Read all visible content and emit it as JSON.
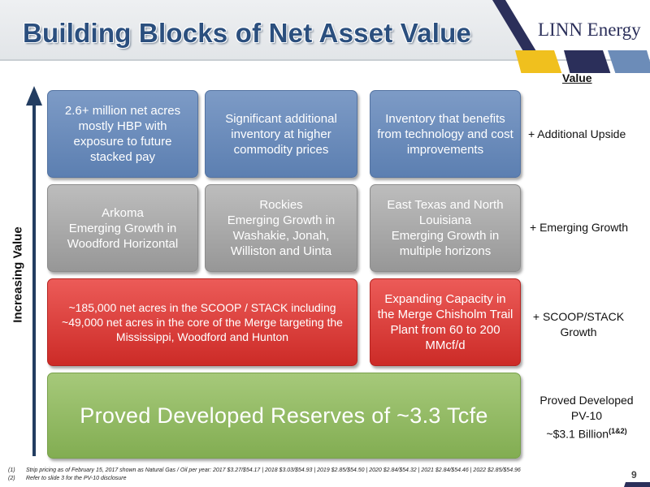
{
  "title": "Building Blocks of Net Asset Value",
  "logo_text": "LINN Energy",
  "value_heading": "Value",
  "axis_label": "Increasing Value",
  "blocks": {
    "row1": [
      "2.6+ million net acres mostly HBP with exposure to future stacked pay",
      "Significant additional inventory at higher commodity prices",
      "Inventory that benefits from technology and cost improvements"
    ],
    "row2": [
      {
        "lines": [
          "Arkoma",
          "Emerging Growth in Woodford Horizontal"
        ]
      },
      {
        "lines": [
          "Rockies",
          "Emerging Growth in Washakie, Jonah, Williston and Uinta"
        ]
      },
      {
        "lines": [
          "East Texas and North Louisiana",
          "Emerging Growth in multiple horizons"
        ]
      }
    ],
    "row3": {
      "wide": "~185,000 net acres in the SCOOP / STACK including ~49,000 net acres in the core of the Merge targeting the Mississippi, Woodford and Hunton",
      "narrow": "Expanding Capacity in the Merge Chisholm Trail Plant from 60 to 200 MMcf/d"
    },
    "row4": "Proved Developed Reserves of ~3.3 Tcfe"
  },
  "value_labels": {
    "row1": "+ Additional Upside",
    "row2": "+ Emerging Growth",
    "row3": [
      "+ SCOOP/STACK",
      "Growth"
    ],
    "row4": [
      "Proved Developed",
      "PV-10",
      "~$3.1 Billion",
      "(1&2)"
    ]
  },
  "footnotes": [
    {
      "num": "(1)",
      "text": "Strip pricing as of February 15, 2017 shown as Natural Gas / Oil per year: 2017 $3.27/$54.17 | 2018 $3.03/$54.93 | 2019 $2.85/$54.50 | 2020 $2.84/$54.32 | 2021 $2.84/$54.46 | 2022 $2.85/$54.96"
    },
    {
      "num": "(2)",
      "text": "Refer to slide 3 for the PV-10 disclosure"
    }
  ],
  "page_number": "9",
  "colors": {
    "title": "#2b4f7e",
    "blue_block": "#6a8aba",
    "gray_block": "#a9a9a9",
    "red_block": "#dd3e3a",
    "green_block": "#93bb64",
    "arrow": "#233d61",
    "accent_yellow": "#f0c01e"
  }
}
